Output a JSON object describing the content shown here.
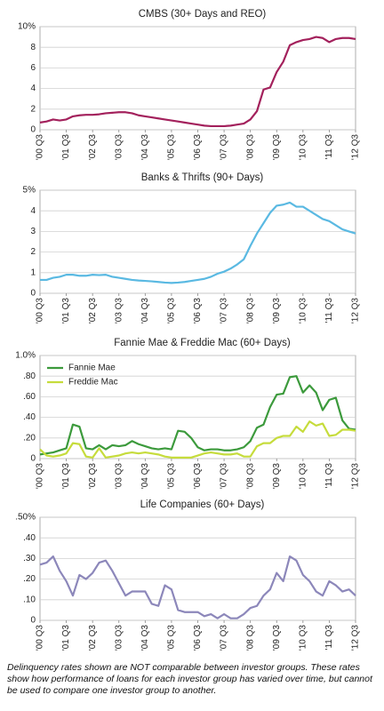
{
  "chart_data": [
    {
      "type": "line",
      "title": "CMBS (30+ Days and REO)",
      "color": "#a3215c",
      "categories": [
        "'00 Q3",
        null,
        null,
        null,
        "'01 Q3",
        null,
        null,
        null,
        "'02 Q3",
        null,
        null,
        null,
        "'03 Q3",
        null,
        null,
        null,
        "'04 Q3",
        null,
        null,
        null,
        "'05 Q3",
        null,
        null,
        null,
        "'06 Q3",
        null,
        null,
        null,
        "'07 Q3",
        null,
        null,
        null,
        "'08 Q3",
        null,
        null,
        null,
        "'09 Q3",
        null,
        null,
        null,
        "'10 Q3",
        null,
        null,
        null,
        "'11 Q3",
        null,
        null,
        null,
        "'12 Q3"
      ],
      "values": [
        0.7,
        0.8,
        1.0,
        0.9,
        1.0,
        1.3,
        1.4,
        1.45,
        1.45,
        1.5,
        1.6,
        1.65,
        1.7,
        1.7,
        1.6,
        1.4,
        1.3,
        1.2,
        1.1,
        1.0,
        0.9,
        0.8,
        0.7,
        0.6,
        0.5,
        0.4,
        0.35,
        0.35,
        0.35,
        0.4,
        0.5,
        0.6,
        1.0,
        1.8,
        3.9,
        4.1,
        5.6,
        6.6,
        8.2,
        8.5,
        8.7,
        8.8,
        9.0,
        8.9,
        8.5,
        8.8,
        8.9,
        8.9,
        8.8
      ],
      "ylim": [
        0,
        10
      ],
      "yticks": [
        0,
        2,
        4,
        6,
        8,
        {
          "value": 10,
          "label": "10%"
        }
      ],
      "grid": true
    },
    {
      "type": "line",
      "title": "Banks & Thrifts (90+ Days)",
      "color": "#5ab9e2",
      "categories": [
        "'00 Q3",
        null,
        null,
        null,
        "'01 Q3",
        null,
        null,
        null,
        "'02 Q3",
        null,
        null,
        null,
        "'03 Q3",
        null,
        null,
        null,
        "'04 Q3",
        null,
        null,
        null,
        "'05 Q3",
        null,
        null,
        null,
        "'06 Q3",
        null,
        null,
        null,
        "'07 Q3",
        null,
        null,
        null,
        "'08 Q3",
        null,
        null,
        null,
        "'09 Q3",
        null,
        null,
        null,
        "'10 Q3",
        null,
        null,
        null,
        "'11 Q3",
        null,
        null,
        null,
        "'12 Q3"
      ],
      "values": [
        0.65,
        0.65,
        0.75,
        0.8,
        0.9,
        0.9,
        0.85,
        0.85,
        0.9,
        0.88,
        0.9,
        0.8,
        0.75,
        0.7,
        0.65,
        0.62,
        0.6,
        0.58,
        0.55,
        0.52,
        0.5,
        0.52,
        0.55,
        0.6,
        0.65,
        0.7,
        0.8,
        0.95,
        1.05,
        1.2,
        1.4,
        1.65,
        2.3,
        2.9,
        3.4,
        3.9,
        4.25,
        4.3,
        4.4,
        4.2,
        4.2,
        4.0,
        3.8,
        3.6,
        3.5,
        3.3,
        3.1,
        3.0,
        2.9
      ],
      "ylim": [
        0,
        5
      ],
      "yticks": [
        0,
        1,
        2,
        3,
        4,
        {
          "value": 5,
          "label": "5%"
        }
      ],
      "grid": true
    },
    {
      "type": "line",
      "title": "Fannie Mae & Freddie Mac (60+ Days)",
      "legend": "upper left",
      "categories": [
        "'00 Q3",
        null,
        null,
        null,
        "'01 Q3",
        null,
        null,
        null,
        "'02 Q3",
        null,
        null,
        null,
        "'03 Q3",
        null,
        null,
        null,
        "'04 Q3",
        null,
        null,
        null,
        "'05 Q3",
        null,
        null,
        null,
        "'06 Q3",
        null,
        null,
        null,
        "'07 Q3",
        null,
        null,
        null,
        "'08 Q3",
        null,
        null,
        null,
        "'09 Q3",
        null,
        null,
        null,
        "'10 Q3",
        null,
        null,
        null,
        "'11 Q3",
        null,
        null,
        null,
        "'12 Q3"
      ],
      "series": [
        {
          "name": "Fannie Mae",
          "color": "#3c9a3c",
          "values": [
            0.04,
            0.05,
            0.06,
            0.08,
            0.1,
            0.33,
            0.31,
            0.1,
            0.09,
            0.13,
            0.09,
            0.13,
            0.12,
            0.13,
            0.17,
            0.14,
            0.12,
            0.1,
            0.09,
            0.1,
            0.09,
            0.27,
            0.26,
            0.2,
            0.11,
            0.08,
            0.09,
            0.09,
            0.08,
            0.08,
            0.09,
            0.11,
            0.17,
            0.3,
            0.33,
            0.5,
            0.62,
            0.63,
            0.79,
            0.8,
            0.64,
            0.71,
            0.64,
            0.47,
            0.57,
            0.59,
            0.37,
            0.29,
            0.28
          ]
        },
        {
          "name": "Freddie Mac",
          "color": "#c6dc3c",
          "values": [
            0.09,
            0.03,
            0.02,
            0.03,
            0.05,
            0.15,
            0.14,
            0.02,
            0.01,
            0.1,
            0.01,
            0.02,
            0.03,
            0.05,
            0.06,
            0.05,
            0.06,
            0.05,
            0.04,
            0.02,
            0.01,
            0.01,
            0.01,
            0.01,
            0.03,
            0.05,
            0.06,
            0.05,
            0.04,
            0.04,
            0.05,
            0.02,
            0.02,
            0.12,
            0.15,
            0.15,
            0.2,
            0.22,
            0.22,
            0.31,
            0.26,
            0.36,
            0.32,
            0.34,
            0.22,
            0.23,
            0.28,
            0.28,
            0.27
          ]
        }
      ],
      "ylim": [
        0,
        1.0
      ],
      "yticks": [
        0,
        {
          "value": 0.2,
          "label": ".20"
        },
        {
          "value": 0.4,
          "label": ".40"
        },
        {
          "value": 0.6,
          "label": ".60"
        },
        {
          "value": 0.8,
          "label": ".80"
        },
        {
          "value": 1.0,
          "label": "1.0%"
        }
      ],
      "grid": true
    },
    {
      "type": "line",
      "title": "Life Companies (60+ Days)",
      "color": "#8c87ba",
      "categories": [
        "'00 Q3",
        null,
        null,
        null,
        "'01 Q3",
        null,
        null,
        null,
        "'02 Q3",
        null,
        null,
        null,
        "'03 Q3",
        null,
        null,
        null,
        "'04 Q3",
        null,
        null,
        null,
        "'05 Q3",
        null,
        null,
        null,
        "'06 Q3",
        null,
        null,
        null,
        "'07 Q3",
        null,
        null,
        null,
        "'08 Q3",
        null,
        null,
        null,
        "'09 Q3",
        null,
        null,
        null,
        "'10 Q3",
        null,
        null,
        null,
        "'11 Q3",
        null,
        null,
        null,
        "'12 Q3"
      ],
      "values": [
        0.27,
        0.28,
        0.31,
        0.24,
        0.19,
        0.12,
        0.22,
        0.2,
        0.23,
        0.28,
        0.29,
        0.24,
        0.18,
        0.12,
        0.14,
        0.14,
        0.14,
        0.08,
        0.07,
        0.17,
        0.15,
        0.05,
        0.04,
        0.04,
        0.04,
        0.02,
        0.03,
        0.01,
        0.03,
        0.01,
        0.01,
        0.03,
        0.06,
        0.07,
        0.12,
        0.15,
        0.23,
        0.19,
        0.31,
        0.29,
        0.22,
        0.19,
        0.14,
        0.12,
        0.19,
        0.17,
        0.14,
        0.15,
        0.12
      ],
      "ylim": [
        0,
        0.5
      ],
      "yticks": [
        0,
        {
          "value": 0.1,
          "label": ".10"
        },
        {
          "value": 0.2,
          "label": ".20"
        },
        {
          "value": 0.3,
          "label": ".30"
        },
        {
          "value": 0.4,
          "label": ".40"
        },
        {
          "value": 0.5,
          "label": ".50%"
        }
      ],
      "grid": true
    }
  ],
  "footnote": "Delinquency rates shown are NOT comparable between investor groups. These rates show how performance of loans for each investor group has varied over time, but cannot be used to compare one investor group to another."
}
